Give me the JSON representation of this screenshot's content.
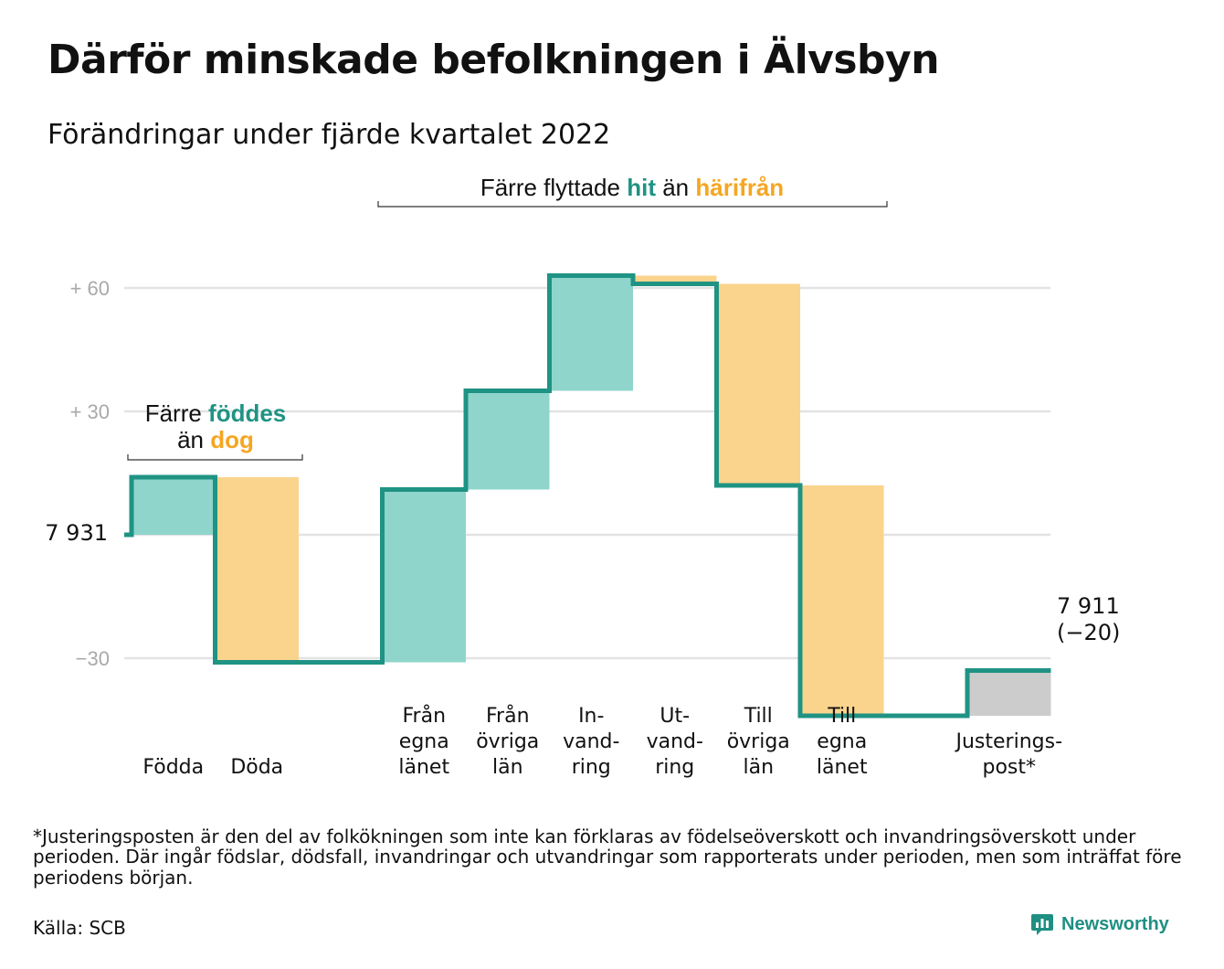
{
  "title": "Därför minskade befolkningen i Älvsbyn",
  "subtitle": "Förändringar under fjärde kvartalet 2022",
  "colors": {
    "increase_fill": "#8fd5cc",
    "decrease_fill": "#fad48c",
    "adjust_fill": "#cccccc",
    "line": "#1f9384",
    "accent_teal": "#1f9384",
    "accent_orange": "#f5a623",
    "grid": "#e3e3e3"
  },
  "annotations": {
    "births": {
      "p1": "Färre ",
      "hl1": "föddes",
      "p2": "än ",
      "hl2": "dog"
    },
    "migration": {
      "p1": "Färre flyttade ",
      "hl1": "hit",
      "p2": " än ",
      "hl2": "härifrån"
    }
  },
  "chart_data": {
    "type": "waterfall",
    "title": "Därför minskade befolkningen i Älvsbyn",
    "subtitle": "Förändringar under fjärde kvartalet 2022",
    "start_value": 7931,
    "start_label": "7 931",
    "end_value": 7911,
    "end_label": "7 911",
    "end_change_label": "(−20)",
    "y_unit": "change relative to start population",
    "ylim": [
      -30,
      80
    ],
    "yticks": [
      {
        "value": 60,
        "label": "+ 60"
      },
      {
        "value": 30,
        "label": "+ 30"
      },
      {
        "value": 0,
        "label": ""
      },
      {
        "value": -30,
        "label": "−30"
      }
    ],
    "grid": true,
    "steps": [
      {
        "category": "Födda",
        "lines": [
          "Födda"
        ],
        "value": 14,
        "kind": "increase"
      },
      {
        "category": "Döda",
        "lines": [
          "Döda"
        ],
        "value": -45,
        "kind": "decrease"
      },
      {
        "category": "",
        "lines": [],
        "value": 0,
        "kind": "spacer"
      },
      {
        "category": "Från egna länet",
        "lines": [
          "Från",
          "egna",
          "länet"
        ],
        "value": 42,
        "kind": "increase"
      },
      {
        "category": "Från övriga län",
        "lines": [
          "Från",
          "övriga",
          "län"
        ],
        "value": 24,
        "kind": "increase"
      },
      {
        "category": "In-vandring",
        "lines": [
          "In-",
          "vand-",
          "ring"
        ],
        "value": 28,
        "kind": "increase"
      },
      {
        "category": "Ut-vandring",
        "lines": [
          "Ut-",
          "vand-",
          "ring"
        ],
        "value": -2,
        "kind": "decrease"
      },
      {
        "category": "Till övriga län",
        "lines": [
          "Till",
          "övriga",
          "län"
        ],
        "value": -49,
        "kind": "decrease"
      },
      {
        "category": "Till egna länet",
        "lines": [
          "Till",
          "egna",
          "länet"
        ],
        "value": -56,
        "kind": "decrease"
      },
      {
        "category": "",
        "lines": [],
        "value": 0,
        "kind": "spacer"
      },
      {
        "category": "Justeringspost*",
        "lines": [
          "Justerings-",
          "post*"
        ],
        "value": 11,
        "kind": "adjustment"
      }
    ]
  },
  "footnote": "*Justeringsposten är den del av folkökningen som inte kan förklaras av födelseöverskott och invandringsöverskott under perioden. Där ingår födslar, dödsfall, invandringar och utvandringar som rapporterats under perioden, men som inträffat före periodens början.",
  "source": "Källa: SCB",
  "brand": {
    "name": "Newsworthy",
    "logo_icon": "bar-chart-speech-bubble-icon"
  }
}
